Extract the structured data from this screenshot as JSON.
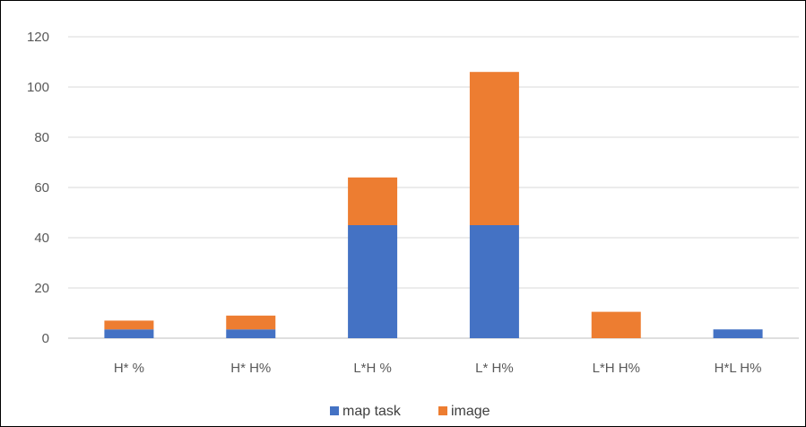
{
  "chart_data": {
    "type": "bar",
    "stacked": true,
    "categories": [
      "H* %",
      "H* H%",
      "L*H %",
      "L* H%",
      "L*H H%",
      "H*L H%"
    ],
    "series": [
      {
        "name": "map task",
        "color": "#4472C4",
        "values": [
          3.5,
          3.5,
          45,
          45,
          0,
          3.5
        ]
      },
      {
        "name": "image",
        "color": "#ED7D31",
        "values": [
          3.5,
          5.5,
          19,
          61,
          10.5,
          0
        ]
      }
    ],
    "ylim": [
      0,
      120
    ],
    "yticks": [
      "0",
      "20",
      "40",
      "60",
      "80",
      "100",
      "120"
    ],
    "grid": true,
    "legend_position": "bottom"
  }
}
